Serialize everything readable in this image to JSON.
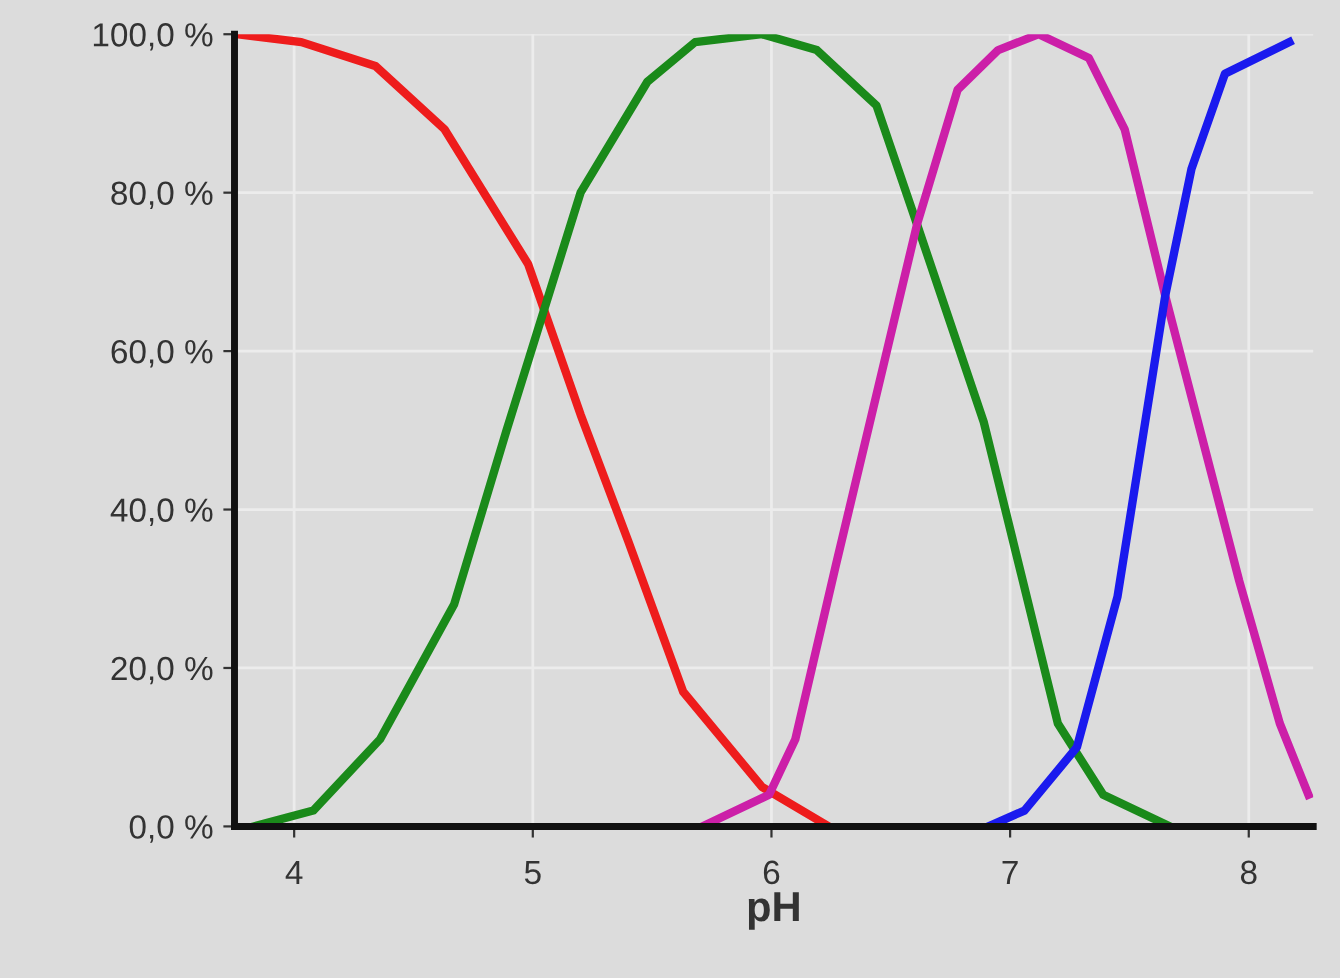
{
  "chart_data": {
    "type": "line",
    "xlabel": "pH",
    "xlim": [
      3.75,
      8.27
    ],
    "xticks": [
      4,
      5,
      6,
      7,
      8
    ],
    "ylim": [
      0,
      100
    ],
    "yticks": [
      {
        "value": 0,
        "label": "0,0 %"
      },
      {
        "value": 20,
        "label": "20,0 %"
      },
      {
        "value": 40,
        "label": "40,0 %"
      },
      {
        "value": 60,
        "label": "60,0 %"
      },
      {
        "value": 80,
        "label": "80,0 %"
      },
      {
        "value": 100,
        "label": "100,0 %"
      }
    ],
    "grid": true,
    "marker": "none",
    "line_style": "solid",
    "series": [
      {
        "color": "#ee1c1c",
        "x": [
          3.76,
          4.03,
          4.34,
          4.63,
          4.98,
          5.2,
          5.4,
          5.63,
          5.96,
          6.24
        ],
        "values": [
          100,
          99,
          96,
          88,
          71,
          52,
          36,
          17,
          5,
          0
        ]
      },
      {
        "color": "#1a8a1a",
        "x": [
          3.83,
          4.08,
          4.36,
          4.67,
          4.89,
          5.2,
          5.48,
          5.68,
          5.96,
          6.19,
          6.44,
          6.61,
          6.89,
          7.2,
          7.39,
          7.67
        ],
        "values": [
          0,
          2,
          11,
          28,
          50,
          80,
          94,
          99,
          100,
          98,
          91,
          76,
          51,
          13,
          4,
          0
        ]
      },
      {
        "color": "#cc1fa8",
        "x": [
          5.71,
          5.99,
          6.1,
          6.27,
          6.61,
          6.78,
          6.95,
          7.12,
          7.33,
          7.48,
          7.65,
          7.96,
          8.13,
          8.25
        ],
        "values": [
          0,
          4,
          11,
          33,
          76,
          93,
          98,
          100,
          97,
          88,
          67,
          31,
          13,
          4
        ]
      },
      {
        "color": "#1a1aee",
        "x": [
          6.91,
          7.06,
          7.28,
          7.45,
          7.65,
          7.76,
          7.9,
          8.17
        ],
        "values": [
          0,
          2,
          10,
          29,
          67,
          83,
          95,
          99
        ]
      }
    ]
  }
}
